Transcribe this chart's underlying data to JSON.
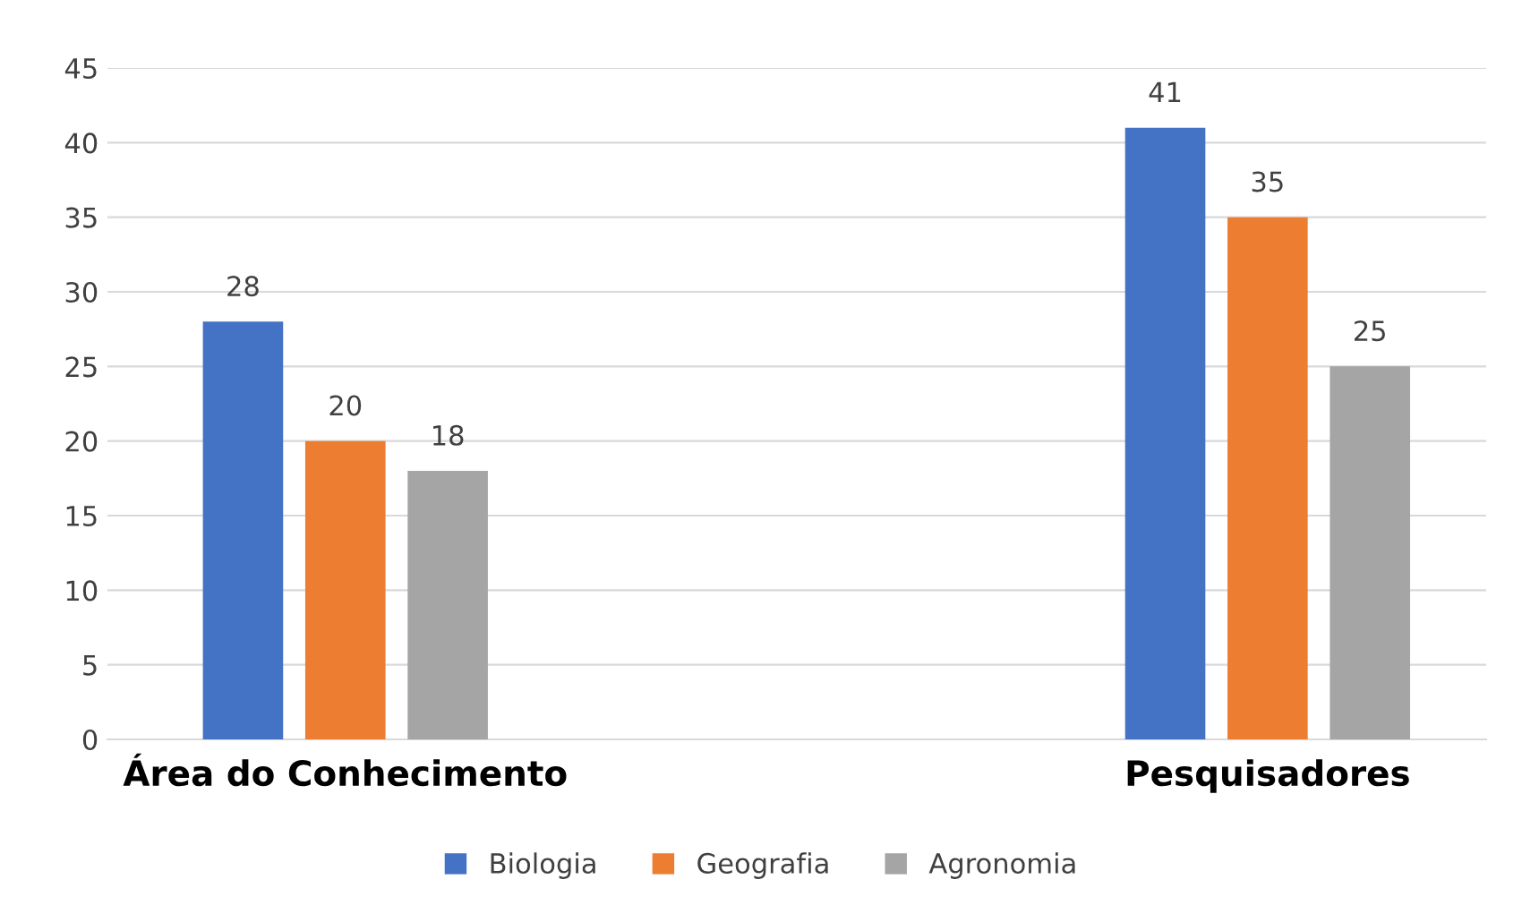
{
  "chart_data": {
    "type": "bar",
    "categories": [
      "Área do Conhecimento",
      "Pesquisadores"
    ],
    "series": [
      {
        "name": "Biologia",
        "color": "#4472c4",
        "values": [
          28,
          41
        ]
      },
      {
        "name": "Geografia",
        "color": "#ed7d31",
        "values": [
          20,
          35
        ]
      },
      {
        "name": "Agronomia",
        "color": "#a5a5a5",
        "values": [
          18,
          25
        ]
      }
    ],
    "ylim": [
      0,
      45
    ],
    "yticks": [
      0,
      5,
      10,
      15,
      20,
      25,
      30,
      35,
      40,
      45
    ],
    "grid": "y",
    "legend": "bottom",
    "data_labels": true
  }
}
